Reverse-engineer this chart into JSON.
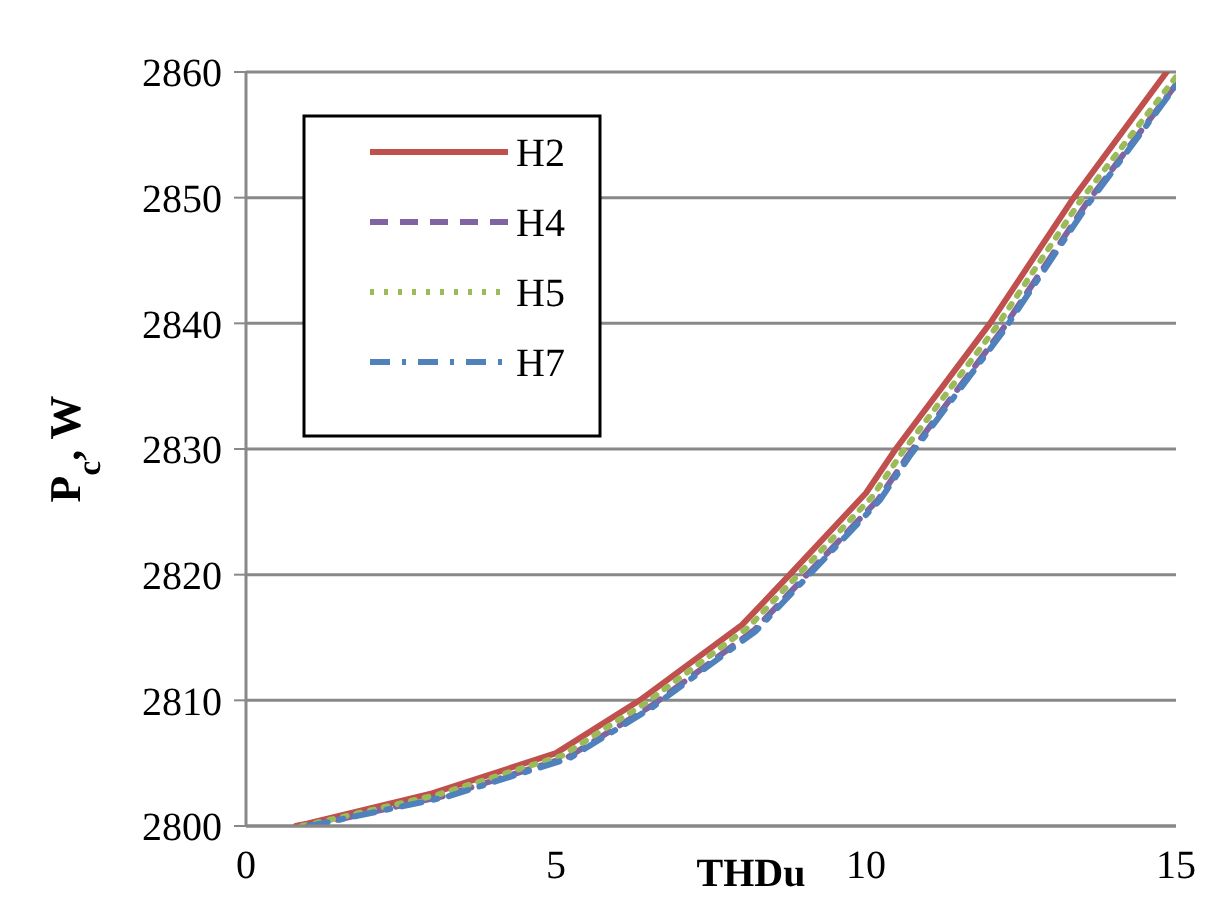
{
  "chart_data": {
    "type": "line",
    "xlabel": "THDu",
    "ylabel": "P$_{c}$, W",
    "xlim": [
      0,
      15
    ],
    "ylim": [
      2800,
      2860
    ],
    "xticks": [
      0,
      5,
      10,
      15
    ],
    "yticks": [
      2800,
      2810,
      2820,
      2830,
      2840,
      2850,
      2860
    ],
    "grid": "y",
    "legend": "top left",
    "marker": "none",
    "series": [
      {
        "name": "H2",
        "color": "#c0504d",
        "line_style": "solid",
        "x": [
          0.8,
          1,
          3,
          5,
          6.35,
          8,
          8.77,
          10,
          10.48,
          12,
          13.35,
          14.85
        ],
        "values": [
          2800,
          2800.2,
          2802.6,
          2805.8,
          2810,
          2816,
          2820,
          2826.5,
          2830,
          2840,
          2850,
          2860
        ]
      },
      {
        "name": "H4",
        "color": "#8064a2",
        "line_style": "dashed",
        "x": [
          1,
          1.2,
          3.2,
          5.2,
          6.55,
          8.2,
          8.97,
          10.2,
          10.68,
          12.2,
          13.55,
          15
        ],
        "values": [
          2800,
          2800.2,
          2802.4,
          2805.5,
          2809.6,
          2815.6,
          2819.6,
          2826,
          2829.5,
          2839.5,
          2849.5,
          2859
        ]
      },
      {
        "name": "H5",
        "color": "#9bbb59",
        "line_style": "dotted",
        "x": [
          0.9,
          1.1,
          3.1,
          5.1,
          6.45,
          8.1,
          8.87,
          10.1,
          10.58,
          12.1,
          13.45,
          15
        ],
        "values": [
          2800,
          2800.2,
          2802.5,
          2805.6,
          2809.8,
          2815.8,
          2819.8,
          2826.2,
          2829.7,
          2839.7,
          2849.7,
          2859.6
        ]
      },
      {
        "name": "H7",
        "color": "#4f81bd",
        "line_style": "dashdot",
        "x": [
          1,
          1.22,
          3.22,
          5.22,
          6.57,
          8.22,
          8.99,
          10.22,
          10.7,
          12.22,
          13.57,
          15
        ],
        "values": [
          2800,
          2800.2,
          2802.3,
          2805.4,
          2809.5,
          2815.5,
          2819.5,
          2825.9,
          2829.4,
          2839.4,
          2849.4,
          2858.9
        ]
      }
    ]
  }
}
